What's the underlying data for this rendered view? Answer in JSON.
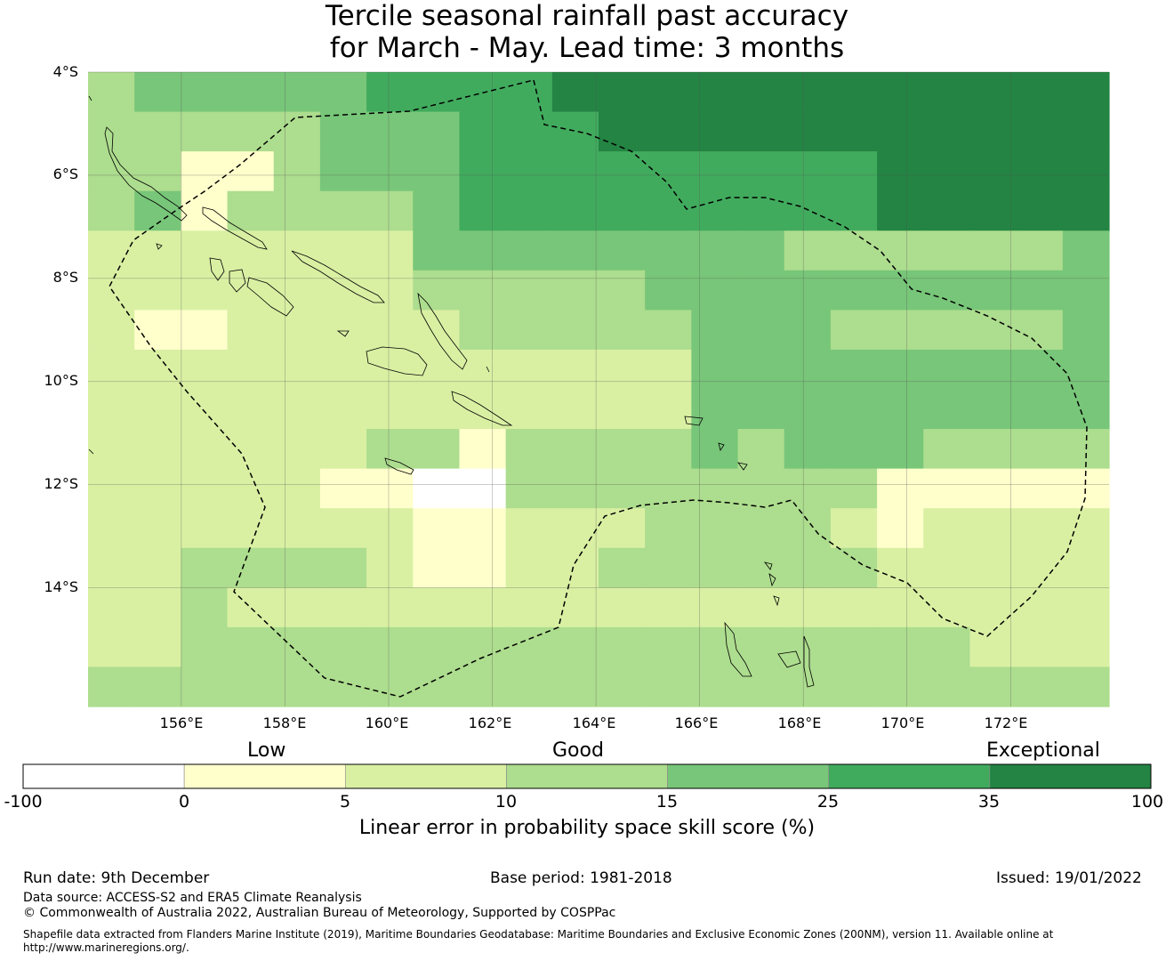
{
  "title": {
    "line1": "Tercile seasonal rainfall past accuracy",
    "line2": "for March - May. Lead time: 3 months"
  },
  "map": {
    "lat_labels": [
      "4°S",
      "6°S",
      "8°S",
      "10°S",
      "12°S",
      "14°S"
    ],
    "lon_labels": [
      "156°E",
      "158°E",
      "160°E",
      "162°E",
      "164°E",
      "166°E",
      "168°E",
      "170°E",
      "172°E"
    ],
    "lat_values": [
      -4,
      -6,
      -8,
      -10,
      -12,
      -14
    ],
    "lon_values": [
      156,
      158,
      160,
      162,
      164,
      166,
      168,
      170,
      172
    ],
    "extent": {
      "lon_min": 154.2,
      "lon_max": 173.9,
      "lat_min": -16.3,
      "lat_max": -4.0
    }
  },
  "legend": {
    "categories": [
      "Low",
      "Good",
      "Exceptional"
    ],
    "ticks": [
      "-100",
      "0",
      "5",
      "10",
      "15",
      "25",
      "35",
      "100"
    ],
    "colors": [
      "#ffffff",
      "#ffffcc",
      "#d9f0a3",
      "#addd8e",
      "#78c679",
      "#41ab5d",
      "#238443"
    ],
    "axis_label": "Linear error in probability space skill score (%)"
  },
  "footer": {
    "run_date": "Run date: 9th December",
    "base_period": "Base period: 1981-2018",
    "issued": "Issued: 19/01/2022",
    "data_source": "Data source: ACCESS-S2 and ERA5 Climate Reanalysis",
    "copyright": "© Commonwealth of Australia 2022, Australian Bureau of Meteorology, Supported by COSPPac",
    "shapefile_line1": "Shapefile data extracted from Flanders Marine Institute (2019), Maritime Boundaries Geodatabase: Maritime Boundaries and Exclusive Economic Zones (200NM), version 11. Available online at",
    "shapefile_line2": "http://www.marineregions.org/."
  }
}
